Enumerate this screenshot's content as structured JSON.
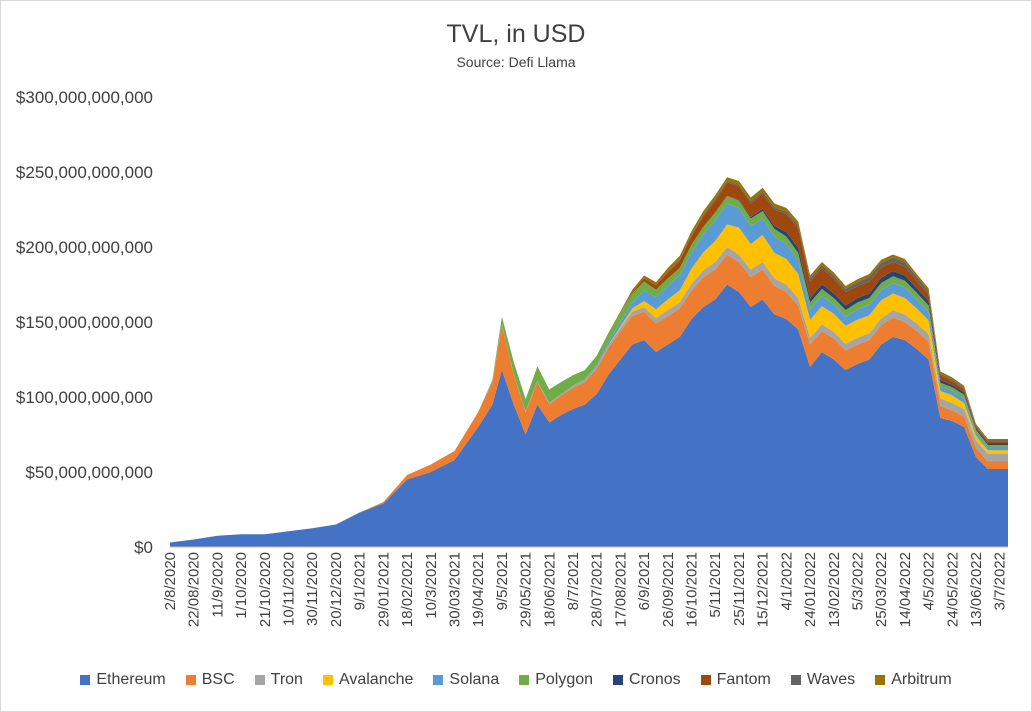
{
  "chart_data": {
    "type": "area",
    "stacked": true,
    "title": "TVL, in USD",
    "subtitle": "Source: Defi Llama",
    "ylim": [
      0,
      300000000000
    ],
    "yticks": [
      0,
      50000000000,
      100000000000,
      150000000000,
      200000000000,
      250000000000,
      300000000000
    ],
    "ytick_labels": [
      "$0",
      "$50,000,000,000",
      "$100,000,000,000",
      "$150,000,000,000",
      "$200,000,000,000",
      "$250,000,000,000",
      "$300,000,000,000"
    ],
    "xtick_labels": [
      "2/8/2020",
      "22/08/2020",
      "11/9/2020",
      "1/10/2020",
      "21/10/2020",
      "10/11/2020",
      "30/11/2020",
      "20/12/2020",
      "9/1/2021",
      "29/01/2021",
      "18/02/2021",
      "10/3/2021",
      "30/03/2021",
      "19/04/2021",
      "9/5/2021",
      "29/05/2021",
      "18/06/2021",
      "8/7/2021",
      "28/07/2021",
      "17/08/2021",
      "6/9/2021",
      "26/09/2021",
      "16/10/2021",
      "5/11/2021",
      "25/11/2021",
      "15/12/2021",
      "4/1/2022",
      "24/01/2022",
      "13/02/2022",
      "5/3/2022",
      "25/03/2022",
      "14/04/2022",
      "4/5/2022",
      "24/05/2022",
      "13/06/2022",
      "3/7/2022"
    ],
    "grid": false,
    "legend_position": "bottom",
    "x": [
      "2/8/2020",
      "22/08/2020",
      "11/9/2020",
      "1/10/2020",
      "21/10/2020",
      "10/11/2020",
      "30/11/2020",
      "20/12/2020",
      "9/1/2021",
      "29/01/2021",
      "18/02/2021",
      "10/3/2021",
      "30/03/2021",
      "19/04/2021",
      "1/5/2021",
      "9/5/2021",
      "19/05/2021",
      "29/05/2021",
      "8/6/2021",
      "18/06/2021",
      "28/06/2021",
      "8/7/2021",
      "18/07/2021",
      "28/07/2021",
      "7/8/2021",
      "17/08/2021",
      "27/08/2021",
      "6/9/2021",
      "16/09/2021",
      "26/09/2021",
      "6/10/2021",
      "16/10/2021",
      "26/10/2021",
      "5/11/2021",
      "15/11/2021",
      "25/11/2021",
      "5/12/2021",
      "15/12/2021",
      "25/12/2021",
      "4/1/2022",
      "14/01/2022",
      "24/01/2022",
      "3/2/2022",
      "13/02/2022",
      "23/02/2022",
      "5/3/2022",
      "15/03/2022",
      "25/03/2022",
      "4/4/2022",
      "14/04/2022",
      "24/04/2022",
      "4/5/2022",
      "14/05/2022",
      "24/05/2022",
      "3/6/2022",
      "13/06/2022",
      "23/06/2022",
      "3/7/2022",
      "10/7/2022"
    ],
    "series": [
      {
        "name": "Ethereum",
        "color": "#4472C4",
        "values": [
          3000000000,
          5000000000,
          7500000000,
          8500000000,
          8500000000,
          10500000000,
          12500000000,
          15000000000,
          23000000000,
          29000000000,
          45000000000,
          50000000000,
          58000000000,
          80000000000,
          95000000000,
          118000000000,
          95000000000,
          75000000000,
          95000000000,
          83000000000,
          88000000000,
          92000000000,
          95000000000,
          102000000000,
          115000000000,
          125000000000,
          135000000000,
          138000000000,
          130000000000,
          135000000000,
          140000000000,
          152000000000,
          160000000000,
          165000000000,
          175000000000,
          170000000000,
          160000000000,
          165000000000,
          155000000000,
          152000000000,
          145000000000,
          120000000000,
          130000000000,
          125000000000,
          118000000000,
          122000000000,
          125000000000,
          135000000000,
          140000000000,
          138000000000,
          132000000000,
          125000000000,
          86000000000,
          84000000000,
          80000000000,
          60000000000,
          52000000000,
          52000000000,
          52000000000
        ]
      },
      {
        "name": "BSC",
        "color": "#ED7D31",
        "values": [
          0,
          0,
          0,
          0,
          0,
          0,
          0,
          0,
          0,
          1000000000,
          3000000000,
          5000000000,
          6000000000,
          10000000000,
          15000000000,
          30000000000,
          20000000000,
          15000000000,
          15000000000,
          12000000000,
          13000000000,
          14000000000,
          15000000000,
          17000000000,
          18000000000,
          19000000000,
          19000000000,
          19000000000,
          19000000000,
          19000000000,
          19000000000,
          19000000000,
          20000000000,
          20000000000,
          20000000000,
          20000000000,
          20000000000,
          20000000000,
          19000000000,
          18000000000,
          16000000000,
          15000000000,
          14000000000,
          14000000000,
          13000000000,
          13000000000,
          13000000000,
          13000000000,
          13000000000,
          12000000000,
          12000000000,
          12000000000,
          8000000000,
          7000000000,
          7000000000,
          6000000000,
          5000000000,
          5000000000,
          5000000000
        ]
      },
      {
        "name": "Tron",
        "color": "#A5A5A5",
        "values": [
          0,
          0,
          0,
          0,
          0,
          0,
          0,
          0,
          0,
          0,
          0,
          0,
          0,
          0,
          500000000,
          500000000,
          500000000,
          500000000,
          500000000,
          1000000000,
          1000000000,
          1500000000,
          1500000000,
          1500000000,
          2000000000,
          2000000000,
          3000000000,
          3000000000,
          3500000000,
          4000000000,
          4000000000,
          4500000000,
          4500000000,
          5000000000,
          5000000000,
          5000000000,
          5000000000,
          5000000000,
          5000000000,
          5000000000,
          5000000000,
          4500000000,
          4500000000,
          4500000000,
          4500000000,
          4500000000,
          4500000000,
          4500000000,
          5000000000,
          5000000000,
          5000000000,
          5000000000,
          5000000000,
          5000000000,
          5000000000,
          5000000000,
          5000000000,
          5000000000,
          5000000000
        ]
      },
      {
        "name": "Avalanche",
        "color": "#FFC000",
        "values": [
          0,
          0,
          0,
          0,
          0,
          0,
          0,
          0,
          0,
          0,
          0,
          0,
          0,
          0,
          0,
          0,
          0,
          0,
          0,
          0,
          0,
          0,
          0,
          0,
          0,
          1000000000,
          2000000000,
          4000000000,
          6000000000,
          7000000000,
          8000000000,
          10000000000,
          12000000000,
          14000000000,
          15000000000,
          18000000000,
          17000000000,
          18000000000,
          17000000000,
          17000000000,
          16000000000,
          12000000000,
          12000000000,
          12000000000,
          12000000000,
          12000000000,
          12000000000,
          12000000000,
          11000000000,
          11000000000,
          10000000000,
          9000000000,
          5000000000,
          5000000000,
          4000000000,
          3000000000,
          2500000000,
          2500000000,
          2500000000
        ]
      },
      {
        "name": "Solana",
        "color": "#5B9BD5",
        "values": [
          0,
          0,
          0,
          0,
          0,
          0,
          0,
          0,
          0,
          0,
          0,
          0,
          0,
          0,
          0,
          0,
          0,
          0,
          0,
          0,
          0,
          0,
          500000000,
          1000000000,
          2000000000,
          3000000000,
          4000000000,
          7000000000,
          8000000000,
          9000000000,
          10000000000,
          11000000000,
          12000000000,
          14000000000,
          14000000000,
          13000000000,
          12000000000,
          11000000000,
          11000000000,
          10000000000,
          9000000000,
          7000000000,
          7000000000,
          6000000000,
          6000000000,
          7000000000,
          7000000000,
          7000000000,
          7000000000,
          7000000000,
          6000000000,
          6000000000,
          3000000000,
          3000000000,
          3000000000,
          2000000000,
          1500000000,
          1500000000,
          1500000000
        ]
      },
      {
        "name": "Polygon",
        "color": "#70AD47",
        "values": [
          0,
          0,
          0,
          0,
          0,
          0,
          0,
          0,
          0,
          0,
          0,
          0,
          0,
          0,
          1000000000,
          5000000000,
          8000000000,
          8000000000,
          10000000000,
          9000000000,
          8000000000,
          7000000000,
          6000000000,
          6000000000,
          6000000000,
          6000000000,
          6000000000,
          6000000000,
          5000000000,
          5000000000,
          5000000000,
          5000000000,
          5000000000,
          5000000000,
          5000000000,
          5000000000,
          5000000000,
          5000000000,
          5000000000,
          5000000000,
          5000000000,
          4500000000,
          4500000000,
          4500000000,
          4500000000,
          4500000000,
          4500000000,
          4500000000,
          4500000000,
          4500000000,
          4500000000,
          4000000000,
          2500000000,
          2500000000,
          2500000000,
          2000000000,
          2000000000,
          2000000000,
          2000000000
        ]
      },
      {
        "name": "Cronos",
        "color": "#264478",
        "values": [
          0,
          0,
          0,
          0,
          0,
          0,
          0,
          0,
          0,
          0,
          0,
          0,
          0,
          0,
          0,
          0,
          0,
          0,
          0,
          0,
          0,
          0,
          0,
          0,
          0,
          0,
          0,
          0,
          0,
          0,
          0,
          0,
          0,
          0,
          0,
          500000000,
          1000000000,
          1500000000,
          2000000000,
          3000000000,
          3500000000,
          3000000000,
          3000000000,
          3000000000,
          3000000000,
          3000000000,
          3000000000,
          3500000000,
          3500000000,
          3500000000,
          3000000000,
          3000000000,
          2000000000,
          1500000000,
          1500000000,
          1000000000,
          1000000000,
          1000000000,
          1000000000
        ]
      },
      {
        "name": "Fantom",
        "color": "#9E480E",
        "values": [
          0,
          0,
          0,
          0,
          0,
          0,
          0,
          0,
          0,
          0,
          0,
          0,
          0,
          0,
          0,
          0,
          0,
          0,
          0,
          0,
          0,
          0,
          0,
          0,
          0,
          0,
          1000000000,
          2000000000,
          3000000000,
          4000000000,
          5000000000,
          6000000000,
          7000000000,
          8000000000,
          9000000000,
          9000000000,
          9000000000,
          10000000000,
          11000000000,
          12000000000,
          13000000000,
          11000000000,
          11000000000,
          10000000000,
          9000000000,
          8000000000,
          8000000000,
          7000000000,
          6000000000,
          6000000000,
          5000000000,
          4500000000,
          3000000000,
          2500000000,
          2000000000,
          1500000000,
          1500000000,
          1500000000,
          1500000000
        ]
      },
      {
        "name": "Waves",
        "color": "#636363",
        "values": [
          0,
          0,
          0,
          0,
          0,
          0,
          0,
          0,
          0,
          0,
          0,
          0,
          0,
          0,
          0,
          0,
          0,
          0,
          0,
          0,
          0,
          0,
          0,
          0,
          0,
          0,
          0,
          0,
          0,
          500000000,
          500000000,
          500000000,
          1000000000,
          1000000000,
          1000000000,
          1000000000,
          1500000000,
          1500000000,
          1500000000,
          1500000000,
          2000000000,
          2000000000,
          2000000000,
          2000000000,
          2000000000,
          2500000000,
          3000000000,
          3000000000,
          3000000000,
          3000000000,
          2500000000,
          2000000000,
          1000000000,
          1000000000,
          1000000000,
          500000000,
          500000000,
          500000000,
          500000000
        ]
      },
      {
        "name": "Arbitrum",
        "color": "#997300",
        "values": [
          0,
          0,
          0,
          0,
          0,
          0,
          0,
          0,
          0,
          0,
          0,
          0,
          0,
          0,
          0,
          0,
          0,
          0,
          0,
          0,
          0,
          0,
          0,
          0,
          0,
          1000000000,
          1500000000,
          2000000000,
          2000000000,
          2500000000,
          2500000000,
          2500000000,
          2500000000,
          2500000000,
          2500000000,
          2500000000,
          2500000000,
          2500000000,
          2500000000,
          2500000000,
          2500000000,
          2000000000,
          2000000000,
          2000000000,
          2000000000,
          2000000000,
          2000000000,
          2000000000,
          2000000000,
          2000000000,
          2000000000,
          2000000000,
          1500000000,
          1500000000,
          1500000000,
          1000000000,
          1000000000,
          1000000000,
          1000000000
        ]
      }
    ]
  }
}
